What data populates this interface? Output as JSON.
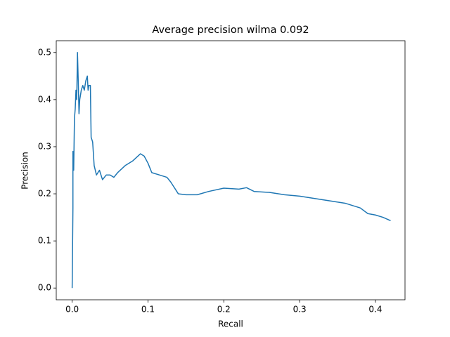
{
  "chart_data": {
    "type": "line",
    "title": "Average precision wilma 0.092",
    "xlabel": "Recall",
    "ylabel": "Precision",
    "color": "#1f77b4",
    "x": [
      0,
      0.001,
      0.001,
      0.002,
      0.003,
      0.004,
      0.005,
      0.006,
      0.007,
      0.008,
      0.009,
      0.01,
      0.012,
      0.014,
      0.016,
      0.018,
      0.02,
      0.021,
      0.022,
      0.024,
      0.025,
      0.027,
      0.029,
      0.032,
      0.036,
      0.04,
      0.045,
      0.05,
      0.055,
      0.06,
      0.07,
      0.08,
      0.09,
      0.095,
      0.1,
      0.105,
      0.115,
      0.125,
      0.13,
      0.14,
      0.15,
      0.165,
      0.18,
      0.2,
      0.22,
      0.23,
      0.24,
      0.26,
      0.28,
      0.3,
      0.32,
      0.34,
      0.36,
      0.38,
      0.39,
      0.4,
      0.41,
      0.42
    ],
    "values": [
      0,
      0.17,
      0.29,
      0.25,
      0.36,
      0.38,
      0.42,
      0.4,
      0.5,
      0.44,
      0.37,
      0.4,
      0.42,
      0.43,
      0.42,
      0.44,
      0.45,
      0.42,
      0.43,
      0.43,
      0.32,
      0.31,
      0.26,
      0.24,
      0.25,
      0.23,
      0.24,
      0.24,
      0.235,
      0.245,
      0.26,
      0.27,
      0.285,
      0.28,
      0.265,
      0.245,
      0.24,
      0.235,
      0.225,
      0.2,
      0.198,
      0.198,
      0.205,
      0.212,
      0.21,
      0.213,
      0.205,
      0.203,
      0.198,
      0.195,
      0.19,
      0.185,
      0.18,
      0.17,
      0.158,
      0.155,
      0.15,
      0.143
    ],
    "xlim": [
      -0.021,
      0.439
    ],
    "ylim": [
      -0.025,
      0.525
    ],
    "xticks": [
      {
        "value": 0,
        "label": "0.0"
      },
      0.1,
      0.2,
      0.3,
      0.4
    ],
    "yticks": [
      {
        "value": 0,
        "label": "0.0"
      },
      0.1,
      0.2,
      0.3,
      0.4,
      0.5
    ]
  }
}
